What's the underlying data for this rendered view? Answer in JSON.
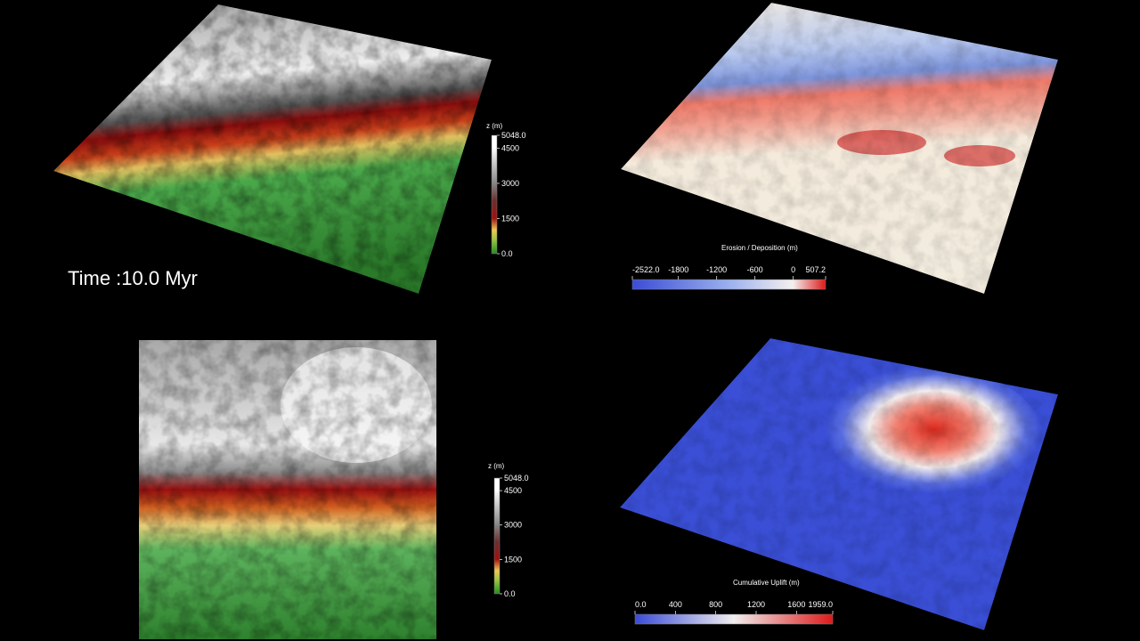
{
  "time_label": "Time :10.0 Myr",
  "colorbars": [
    {
      "title": "z (m)",
      "range": [
        0,
        5048
      ],
      "ticks": [
        {
          "value": 5048,
          "label": "5048.0"
        },
        4500,
        3000,
        1500,
        {
          "value": 0,
          "label": "0.0"
        }
      ]
    },
    {
      "title": "Erosion / Deposition (m)",
      "range": [
        -2522,
        507.2
      ],
      "ticks": [
        {
          "value": -2522,
          "label": "-2522.0"
        },
        -1800,
        -1200,
        -600,
        0,
        507.2
      ]
    },
    {
      "title": "z (m)",
      "range": [
        0,
        5048
      ],
      "ticks": [
        {
          "value": 5048,
          "label": "5048.0"
        },
        4500,
        3000,
        1500,
        {
          "value": 0,
          "label": "0.0"
        }
      ]
    },
    {
      "title": "Cumulative Uplift (m)",
      "range": [
        0,
        1959
      ],
      "ticks": [
        {
          "value": 0,
          "label": "0.0"
        },
        400,
        800,
        1200,
        1600,
        {
          "value": 1959,
          "label": "1959.0"
        }
      ]
    }
  ]
}
